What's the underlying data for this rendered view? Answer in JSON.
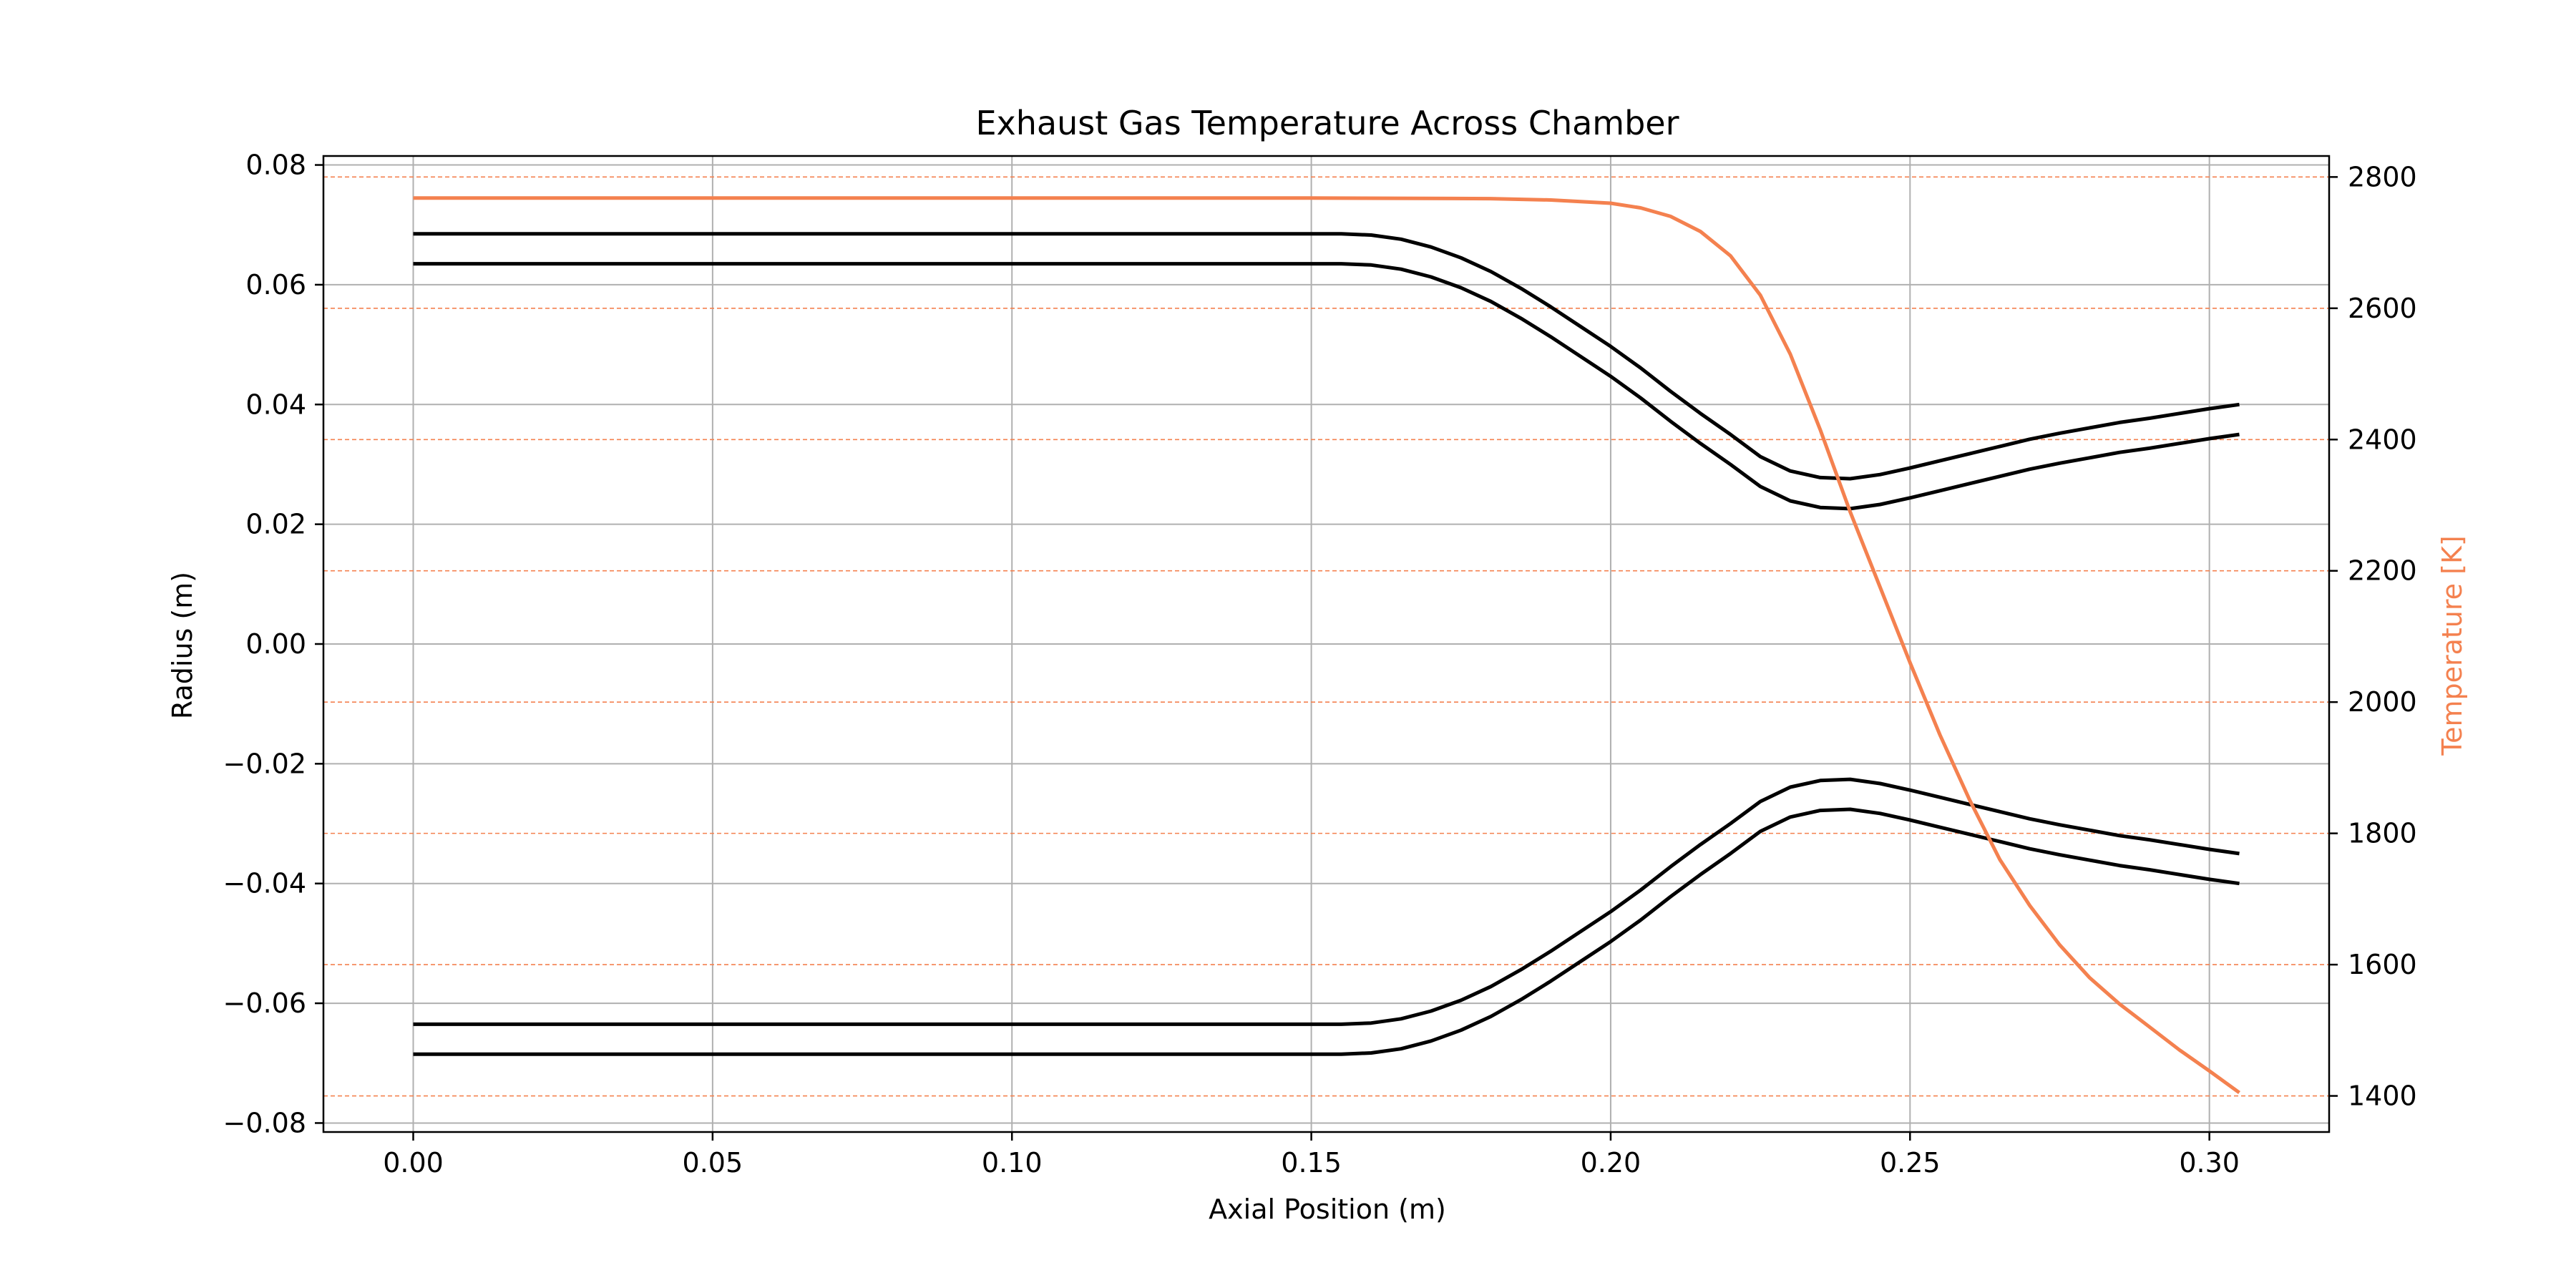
{
  "chart_data": {
    "type": "line",
    "title": "Exhaust Gas Temperature Across Chamber",
    "xlabel": "Axial Position (m)",
    "ylabel": "Radius (m)",
    "y2label": "Temperature [K]",
    "xlim": [
      -0.015,
      0.32
    ],
    "ylim": [
      -0.0815,
      0.0815
    ],
    "y2lim": [
      1345,
      2832
    ],
    "xticks": [
      0.0,
      0.05,
      0.1,
      0.15,
      0.2,
      0.25,
      0.3
    ],
    "xtick_labels": [
      "0.00",
      "0.05",
      "0.10",
      "0.15",
      "0.20",
      "0.25",
      "0.30"
    ],
    "yticks": [
      0.08,
      0.06,
      0.04,
      0.02,
      0.0,
      -0.02,
      -0.04,
      -0.06,
      -0.08
    ],
    "ytick_labels": [
      "0.08",
      "0.06",
      "0.04",
      "0.02",
      "0.00",
      "−0.02",
      "−0.04",
      "−0.06",
      "−0.08"
    ],
    "y2ticks": [
      2800,
      2600,
      2400,
      2200,
      2000,
      1800,
      1600,
      1400
    ],
    "y2tick_labels": [
      "2800",
      "2600",
      "2400",
      "2200",
      "2000",
      "1800",
      "1600",
      "1400"
    ],
    "grid": true,
    "colors": {
      "contour": "#000000",
      "temperature": "#f4814f",
      "grid": "#b0b0b0"
    },
    "series": [
      {
        "axis": "left",
        "x": [
          0.0,
          0.02,
          0.04,
          0.06,
          0.08,
          0.1,
          0.12,
          0.14,
          0.155,
          0.16,
          0.165,
          0.17,
          0.175,
          0.18,
          0.185,
          0.19,
          0.195,
          0.2,
          0.205,
          0.21,
          0.215,
          0.22,
          0.225,
          0.23,
          0.235,
          0.24,
          0.245,
          0.25,
          0.255,
          0.26,
          0.265,
          0.27,
          0.275,
          0.28,
          0.285,
          0.29,
          0.295,
          0.3,
          0.305
        ],
        "values": [
          0.0685,
          0.0685,
          0.0685,
          0.0685,
          0.0685,
          0.0685,
          0.0685,
          0.0685,
          0.0685,
          0.0683,
          0.0676,
          0.0663,
          0.0645,
          0.0622,
          0.0594,
          0.0563,
          0.053,
          0.0497,
          0.0461,
          0.0422,
          0.0385,
          0.035,
          0.0313,
          0.0289,
          0.0278,
          0.0276,
          0.0283,
          0.0294,
          0.0306,
          0.0318,
          0.033,
          0.0342,
          0.0352,
          0.0361,
          0.037,
          0.0377,
          0.0385,
          0.0393,
          0.04
        ]
      },
      {
        "axis": "left",
        "x": [
          0.0,
          0.02,
          0.04,
          0.06,
          0.08,
          0.1,
          0.12,
          0.14,
          0.155,
          0.16,
          0.165,
          0.17,
          0.175,
          0.18,
          0.185,
          0.19,
          0.195,
          0.2,
          0.205,
          0.21,
          0.215,
          0.22,
          0.225,
          0.23,
          0.235,
          0.24,
          0.245,
          0.25,
          0.255,
          0.26,
          0.265,
          0.27,
          0.275,
          0.28,
          0.285,
          0.29,
          0.295,
          0.3,
          0.305
        ],
        "values": [
          0.0635,
          0.0635,
          0.0635,
          0.0635,
          0.0635,
          0.0635,
          0.0635,
          0.0635,
          0.0635,
          0.0633,
          0.0626,
          0.0613,
          0.0595,
          0.0572,
          0.0544,
          0.0513,
          0.048,
          0.0447,
          0.0411,
          0.0372,
          0.0335,
          0.03,
          0.0263,
          0.0239,
          0.0228,
          0.0226,
          0.0233,
          0.0244,
          0.0256,
          0.0268,
          0.028,
          0.0292,
          0.0302,
          0.0311,
          0.032,
          0.0327,
          0.0335,
          0.0343,
          0.035
        ]
      },
      {
        "axis": "left",
        "x": [
          0.0,
          0.02,
          0.04,
          0.06,
          0.08,
          0.1,
          0.12,
          0.14,
          0.155,
          0.16,
          0.165,
          0.17,
          0.175,
          0.18,
          0.185,
          0.19,
          0.195,
          0.2,
          0.205,
          0.21,
          0.215,
          0.22,
          0.225,
          0.23,
          0.235,
          0.24,
          0.245,
          0.25,
          0.255,
          0.26,
          0.265,
          0.27,
          0.275,
          0.28,
          0.285,
          0.29,
          0.295,
          0.3,
          0.305
        ],
        "values": [
          -0.0635,
          -0.0635,
          -0.0635,
          -0.0635,
          -0.0635,
          -0.0635,
          -0.0635,
          -0.0635,
          -0.0635,
          -0.0633,
          -0.0626,
          -0.0613,
          -0.0595,
          -0.0572,
          -0.0544,
          -0.0513,
          -0.048,
          -0.0447,
          -0.0411,
          -0.0372,
          -0.0335,
          -0.03,
          -0.0263,
          -0.0239,
          -0.0228,
          -0.0226,
          -0.0233,
          -0.0244,
          -0.0256,
          -0.0268,
          -0.028,
          -0.0292,
          -0.0302,
          -0.0311,
          -0.032,
          -0.0327,
          -0.0335,
          -0.0343,
          -0.035
        ]
      },
      {
        "axis": "left",
        "x": [
          0.0,
          0.02,
          0.04,
          0.06,
          0.08,
          0.1,
          0.12,
          0.14,
          0.155,
          0.16,
          0.165,
          0.17,
          0.175,
          0.18,
          0.185,
          0.19,
          0.195,
          0.2,
          0.205,
          0.21,
          0.215,
          0.22,
          0.225,
          0.23,
          0.235,
          0.24,
          0.245,
          0.25,
          0.255,
          0.26,
          0.265,
          0.27,
          0.275,
          0.28,
          0.285,
          0.29,
          0.295,
          0.3,
          0.305
        ],
        "values": [
          -0.0685,
          -0.0685,
          -0.0685,
          -0.0685,
          -0.0685,
          -0.0685,
          -0.0685,
          -0.0685,
          -0.0685,
          -0.0683,
          -0.0676,
          -0.0663,
          -0.0645,
          -0.0622,
          -0.0594,
          -0.0563,
          -0.053,
          -0.0497,
          -0.0461,
          -0.0422,
          -0.0385,
          -0.035,
          -0.0313,
          -0.0289,
          -0.0278,
          -0.0276,
          -0.0283,
          -0.0294,
          -0.0306,
          -0.0318,
          -0.033,
          -0.0342,
          -0.0352,
          -0.0361,
          -0.037,
          -0.0377,
          -0.0385,
          -0.0393,
          -0.04
        ]
      },
      {
        "axis": "right",
        "x": [
          0.0,
          0.05,
          0.1,
          0.15,
          0.18,
          0.19,
          0.2,
          0.205,
          0.21,
          0.215,
          0.22,
          0.225,
          0.23,
          0.235,
          0.24,
          0.245,
          0.25,
          0.255,
          0.26,
          0.265,
          0.27,
          0.275,
          0.28,
          0.285,
          0.29,
          0.295,
          0.3,
          0.305
        ],
        "values": [
          2768,
          2768,
          2768,
          2768,
          2767,
          2765,
          2760,
          2753,
          2740,
          2717,
          2680,
          2620,
          2530,
          2415,
          2290,
          2175,
          2060,
          1950,
          1850,
          1760,
          1690,
          1630,
          1580,
          1540,
          1505,
          1470,
          1438,
          1405
        ]
      }
    ]
  }
}
